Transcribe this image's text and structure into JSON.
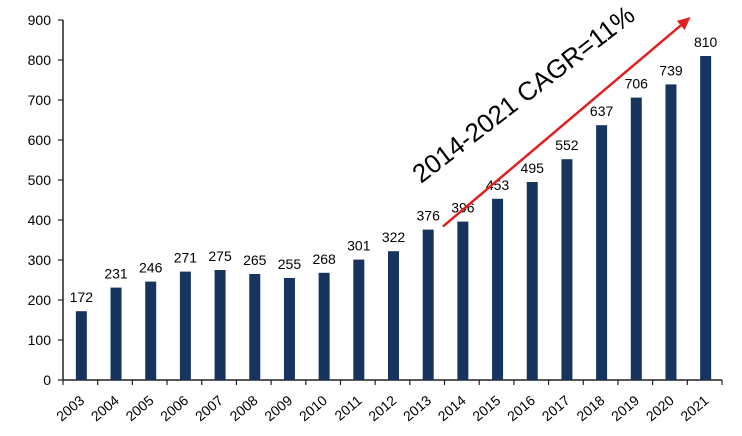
{
  "chart_data": {
    "type": "bar",
    "title": "",
    "xlabel": "",
    "ylabel": "",
    "categories": [
      "2003",
      "2004",
      "2005",
      "2006",
      "2007",
      "2008",
      "2009",
      "2010",
      "2011",
      "2012",
      "2013",
      "2014",
      "2015",
      "2016",
      "2017",
      "2018",
      "2019",
      "2020",
      "2021"
    ],
    "values": [
      172,
      231,
      246,
      271,
      275,
      265,
      255,
      268,
      301,
      322,
      376,
      396,
      453,
      495,
      552,
      637,
      706,
      739,
      810
    ],
    "ylim": [
      0,
      900
    ],
    "yticks": [
      0,
      100,
      200,
      300,
      400,
      500,
      600,
      700,
      800,
      900
    ],
    "grid": false,
    "legend": "none",
    "bar_color": "#17345f",
    "axis_color": "#222222",
    "annotation": {
      "text": "2014-2021 CAGR=11%",
      "arrow_color": "#e02020",
      "from_category": "2014",
      "to_category": "2021"
    }
  }
}
